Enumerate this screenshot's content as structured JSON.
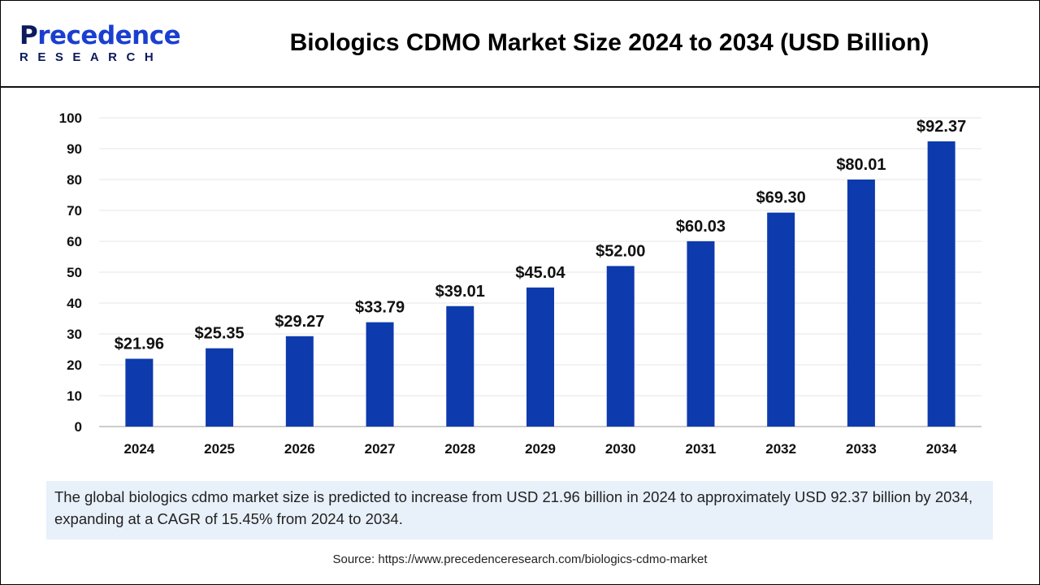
{
  "logo": {
    "line1": "Precedence",
    "line2": "RESEARCH"
  },
  "chart_data": {
    "type": "bar",
    "title": "Biologics CDMO Market Size 2024 to 2034 (USD Billion)",
    "categories": [
      "2024",
      "2025",
      "2026",
      "2027",
      "2028",
      "2029",
      "2030",
      "2031",
      "2032",
      "2033",
      "2034"
    ],
    "values": [
      21.96,
      25.35,
      29.27,
      33.79,
      39.01,
      45.04,
      52.0,
      60.03,
      69.3,
      80.01,
      92.37
    ],
    "data_labels": [
      "$21.96",
      "$25.35",
      "$29.27",
      "$33.79",
      "$39.01",
      "$45.04",
      "$52.00",
      "$60.03",
      "$69.30",
      "$80.01",
      "$92.37"
    ],
    "yticks": [
      0,
      10,
      20,
      30,
      40,
      50,
      60,
      70,
      80,
      90,
      100
    ],
    "ylim": [
      0,
      100
    ],
    "grid": true,
    "bar_color": "#0d3aad"
  },
  "description": "The global biologics cdmo market size is predicted to increase from USD 21.96 billion in 2024 to approximately USD 92.37 billion by 2034, expanding at a CAGR of 15.45% from 2024 to 2034.",
  "source": "Source: https://www.precedenceresearch.com/biologics-cdmo-market"
}
